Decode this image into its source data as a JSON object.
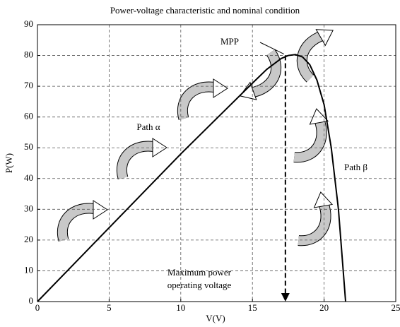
{
  "chart_data": {
    "type": "line",
    "title": "Power-voltage characteristic and nominal condition",
    "x_label": "V(V)",
    "y_label": "P(W)",
    "x": [
      0,
      5,
      10,
      15,
      16,
      17,
      17.5,
      18,
      18.5,
      19,
      19.5,
      20,
      20.5,
      21,
      21.3,
      21.5
    ],
    "values": [
      0,
      24,
      48,
      71,
      75.5,
      79,
      80,
      80.3,
      79.5,
      77,
      72,
      64,
      50,
      30,
      12,
      0
    ],
    "color": "#000000",
    "xlim": [
      0,
      25
    ],
    "xticks": [
      0,
      5,
      10,
      15,
      20,
      25
    ],
    "ylim": [
      0,
      90
    ],
    "yticks": [
      0,
      10,
      20,
      30,
      40,
      50,
      60,
      70,
      80,
      90
    ],
    "grid": true,
    "mpp": {
      "x": 17.3,
      "y": 80
    },
    "annotations": [
      "MPP",
      "Path α",
      "Path β",
      "Maximum power",
      "operating voltage"
    ]
  }
}
